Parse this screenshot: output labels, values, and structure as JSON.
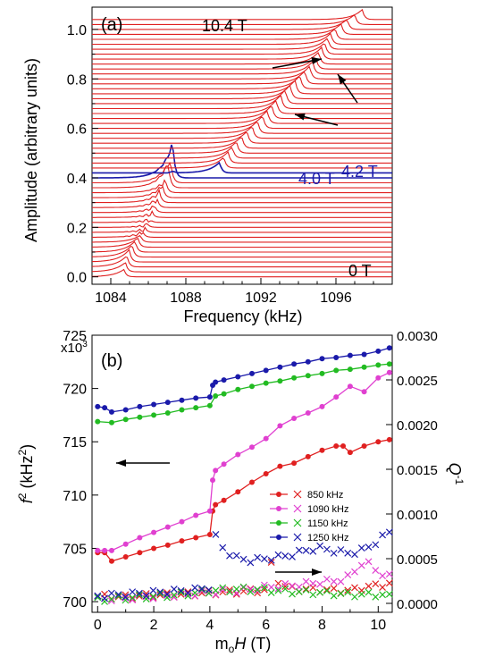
{
  "chart_data": [
    {
      "type": "line",
      "panel_label": "(a)",
      "xlabel": "Frequency  (kHz)",
      "ylabel": "Amplitude  (arbitrary units)",
      "xlim": [
        1083,
        1099
      ],
      "ylim": [
        -0.03,
        1.09
      ],
      "xticks": [
        1084,
        1088,
        1092,
        1096
      ],
      "yticks": [
        0.0,
        0.2,
        0.4,
        0.6,
        0.8,
        1.0
      ],
      "annotations": [
        "10.4 T",
        "4.0 T",
        "4.2 T",
        "0 T"
      ],
      "trace_field_range": [
        0,
        10.4
      ],
      "trace_count": 53,
      "trace_offset_step": 0.02,
      "resonance_frequency_by_field": {
        "H": [
          0.0,
          0.5,
          1.0,
          2.0,
          3.0,
          3.5,
          4.0,
          4.2,
          5.0,
          6.0,
          7.0,
          8.0,
          9.0,
          9.5,
          10.0,
          10.4
        ],
        "f": [
          1084.7,
          1084.9,
          1085.3,
          1086.0,
          1086.6,
          1087.0,
          1087.3,
          1089.8,
          1090.7,
          1092.1,
          1093.3,
          1094.6,
          1095.4,
          1095.8,
          1096.6,
          1097.4
        ]
      },
      "highlight_traces": [
        {
          "label": "4.0 T",
          "color": "#1a1aaa"
        },
        {
          "label": "4.2 T",
          "color": "#1a1aaa"
        }
      ],
      "trace_color": "#e02020",
      "arrows": 3
    },
    {
      "type": "line",
      "panel_label": "(b)",
      "xlabel_prefix": "m",
      "xlabel_sub": "o",
      "xlabel_var": "H",
      "xlabel_unit": "  (T)",
      "ylabel_left_f": "f",
      "ylabel_left_unit": "  (kHz",
      "ylabel_right": "Q",
      "ylabel_right_sup": "-1",
      "ylim_left": [
        699,
        725
      ],
      "ylim_right": [
        -0.0001,
        0.003
      ],
      "xlim": [
        -0.2,
        10.5
      ],
      "left_ticks": [
        700,
        705,
        710,
        715,
        720,
        725
      ],
      "left_tick_multiplier": "x10",
      "left_tick_multiplier_exp": "3",
      "right_ticks": [
        "0.0000",
        "0.0005",
        "0.0010",
        "0.0015",
        "0.0020",
        "0.0025",
        "0.0030"
      ],
      "x_ticks": [
        0,
        2,
        4,
        6,
        8,
        10
      ],
      "series": [
        {
          "name": "850 kHz",
          "color": "#e02020",
          "f2_x": [
            0,
            0.25,
            0.5,
            1,
            1.5,
            2,
            2.5,
            3,
            3.5,
            4,
            4.1,
            4.2,
            4.5,
            5,
            5.5,
            6,
            6.5,
            7,
            7.5,
            8,
            8.5,
            8.75,
            9,
            9.5,
            10,
            10.4
          ],
          "f2_y": [
            704.6,
            704.6,
            703.8,
            704.2,
            704.6,
            705.0,
            705.3,
            705.7,
            706.0,
            706.3,
            708.5,
            709.1,
            709.5,
            710.3,
            711.2,
            712.0,
            712.7,
            713.0,
            713.6,
            714.2,
            714.6,
            714.6,
            714.0,
            714.6,
            715.0,
            715.2
          ],
          "q_x": [
            0,
            1,
            2,
            3,
            4,
            5,
            6,
            6.2,
            6.5,
            7,
            8,
            9,
            9.5,
            10,
            10.4
          ],
          "q_y": [
            8e-05,
            7e-05,
            9e-05,
            0.0001,
            0.00012,
            0.00013,
            0.00015,
            0.00045,
            0.0002,
            0.00016,
            0.00015,
            0.00014,
            0.00018,
            0.0002,
            0.00022
          ]
        },
        {
          "name": "1090 kHz",
          "color": "#e040d0",
          "f2_x": [
            0,
            0.25,
            0.5,
            1,
            1.5,
            2,
            2.5,
            3,
            3.5,
            4,
            4.1,
            4.2,
            4.5,
            5,
            5.5,
            6,
            6.5,
            7,
            7.5,
            8,
            8.5,
            9,
            9.5,
            10,
            10.4
          ],
          "f2_y": [
            704.8,
            704.8,
            704.8,
            705.4,
            706.0,
            706.5,
            707.0,
            707.5,
            708.1,
            708.5,
            711.4,
            712.3,
            712.9,
            713.8,
            714.5,
            715.3,
            716.5,
            717.2,
            717.7,
            718.3,
            719.2,
            720.2,
            719.7,
            721.0,
            721.5
          ],
          "q_x": [
            0,
            1,
            2,
            3,
            4,
            5,
            6,
            7,
            8,
            8.5,
            9,
            9.5,
            10,
            10.4
          ],
          "q_y": [
            5e-05,
            6e-05,
            8e-05,
            0.0001,
            0.00012,
            0.00014,
            0.00018,
            0.0002,
            0.00024,
            0.00025,
            0.0003,
            0.00048,
            0.00035,
            0.0003
          ]
        },
        {
          "name": "1150 kHz",
          "color": "#22bb22",
          "f2_x": [
            0,
            0.5,
            1,
            1.5,
            2,
            2.5,
            3,
            3.5,
            4,
            4.2,
            4.5,
            5,
            5.5,
            6,
            6.5,
            7,
            7.5,
            8,
            8.5,
            9,
            9.5,
            10,
            10.4
          ],
          "f2_y": [
            716.9,
            716.8,
            717.1,
            717.3,
            717.5,
            717.7,
            718.0,
            718.2,
            718.4,
            719.3,
            719.5,
            719.9,
            720.2,
            720.5,
            720.7,
            721.0,
            721.2,
            721.4,
            721.7,
            721.8,
            722.0,
            722.2,
            722.3
          ],
          "q_x": [
            0,
            1,
            2,
            3,
            4,
            5,
            6,
            7,
            8,
            9,
            10,
            10.4
          ],
          "q_y": [
            4e-05,
            6e-05,
            8e-05,
            0.0001,
            0.00014,
            0.00016,
            0.00015,
            0.00013,
            0.00012,
            0.0001,
            0.0001,
            8e-05
          ]
        },
        {
          "name": "1250 kHz",
          "color": "#1a1aaa",
          "f2_x": [
            0,
            0.25,
            0.5,
            1,
            1.5,
            2,
            2.5,
            3,
            3.5,
            4,
            4.1,
            4.2,
            4.5,
            5,
            5.5,
            6,
            6.5,
            7,
            7.5,
            8,
            8.5,
            9,
            9.5,
            10,
            10.4
          ],
          "f2_y": [
            718.3,
            718.2,
            717.8,
            718.0,
            718.3,
            718.5,
            718.7,
            718.9,
            719.1,
            719.2,
            720.3,
            720.6,
            720.8,
            721.1,
            721.4,
            721.7,
            722.0,
            722.3,
            722.5,
            722.8,
            722.9,
            723.1,
            723.2,
            723.5,
            723.8
          ],
          "q_x": [
            0,
            1,
            2,
            3,
            3.5,
            4,
            4.2,
            4.5,
            5,
            5.5,
            6,
            6.5,
            7,
            7.5,
            8,
            8.5,
            9,
            9.5,
            10,
            10.4
          ],
          "q_y": [
            8e-05,
            0.0001,
            0.00012,
            0.00014,
            0.00015,
            0.00018,
            0.00075,
            0.0006,
            0.0005,
            0.00048,
            0.0005,
            0.00052,
            0.00055,
            0.0006,
            0.00062,
            0.00058,
            0.00056,
            0.0006,
            0.0007,
            0.0008
          ]
        }
      ],
      "arrows": [
        {
          "direction": "left",
          "axis": "left"
        },
        {
          "direction": "right",
          "axis": "right"
        }
      ]
    }
  ]
}
